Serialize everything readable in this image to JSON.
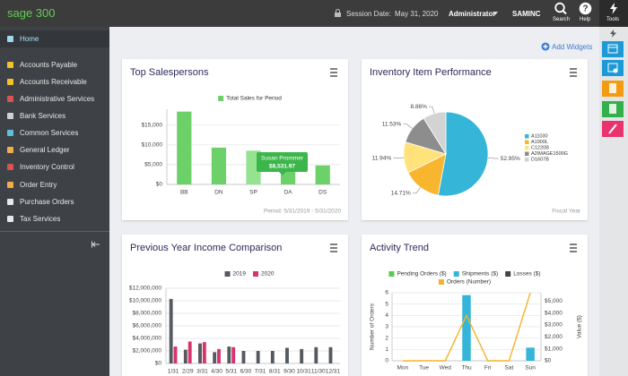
{
  "header": {
    "logo": "sage 300",
    "session_label": "Session Date:",
    "session_date": "May 31, 2020",
    "user": "Administrator",
    "company": "SAMINC",
    "search": "Search",
    "help_glyph": "?",
    "help": "Help",
    "tools": "Tools"
  },
  "sidebar": {
    "items": [
      "Home",
      "Accounts Payable",
      "Accounts Receivable",
      "Administrative Services",
      "Bank Services",
      "Common Services",
      "General Ledger",
      "Inventory Control",
      "Order Entry",
      "Purchase Orders",
      "Tax Services"
    ]
  },
  "add_widgets": "Add Widgets",
  "chart_data": [
    {
      "type": "bar",
      "title": "Top Salespersons",
      "categories": [
        "BB",
        "DN",
        "SP",
        "DA",
        "DS"
      ],
      "series": [
        {
          "name": "Total Sales for Period",
          "color": "#6cd168",
          "values": [
            18400,
            9300,
            8531.97,
            5600,
            4800
          ]
        }
      ],
      "colors": [
        "#6cd168",
        "#6cd168",
        "#95e391",
        "#6cd168",
        "#6cd168"
      ],
      "ylim": [
        0,
        19000
      ],
      "yticks": [
        {
          "value": 0,
          "label": "$0"
        },
        {
          "value": 5000,
          "label": "$5,000"
        },
        {
          "value": 10000,
          "label": "$10,000"
        },
        {
          "value": 15000,
          "label": "$15,000"
        }
      ],
      "grid": true,
      "legend": "top",
      "tooltip": {
        "title": "Susan Prommer",
        "label": "$8,531.97"
      },
      "footer": "Period: 5/31/2019 - 5/31/2020"
    },
    {
      "type": "pie",
      "title": "Inventory Item Performance",
      "categories": [
        "A11030",
        "A1900L",
        "C1220B",
        "A2IMAGE1500G",
        "D1607B"
      ],
      "values": [
        52.95,
        14.71,
        11.94,
        11.53,
        8.86
      ],
      "value_labels": [
        "52.95%",
        "14.71%",
        "11.94%",
        "11.53%",
        "8.86%"
      ],
      "colors": [
        "#35b5d8",
        "#f8b52e",
        "#ffe27a",
        "#8d8d8d",
        "#d3d3d3"
      ],
      "legend": "right",
      "footer": "Fiscal Year"
    },
    {
      "type": "bar",
      "title": "Previous Year Income Comparison",
      "categories": [
        "1/31",
        "2/29",
        "3/31",
        "4/30",
        "5/31",
        "6/30",
        "7/31",
        "8/31",
        "9/30",
        "10/31",
        "11/30",
        "12/31"
      ],
      "series": [
        {
          "name": "2019",
          "color": "#555a60",
          "values": [
            10300000,
            2200000,
            3200000,
            1800000,
            2700000,
            2000000,
            2000000,
            2000000,
            2500000,
            2300000,
            2600000,
            2600000
          ]
        },
        {
          "name": "2020",
          "color": "#d8336d",
          "values": [
            2700000,
            3500000,
            3400000,
            2300000,
            2600000,
            null,
            null,
            null,
            null,
            null,
            null,
            null
          ]
        }
      ],
      "ylim": [
        0,
        12000000
      ],
      "yticks": [
        {
          "value": 0,
          "label": "$0"
        },
        {
          "value": 2000000,
          "label": "$2,000,000"
        },
        {
          "value": 4000000,
          "label": "$4,000,000"
        },
        {
          "value": 6000000,
          "label": "$6,000,000"
        },
        {
          "value": 8000000,
          "label": "$8,000,000"
        },
        {
          "value": 10000000,
          "label": "$10,000,000"
        },
        {
          "value": 12000000,
          "label": "$12,000,000"
        }
      ],
      "grid": true,
      "legend": "top"
    },
    {
      "type": "combo",
      "title": "Activity Trend",
      "categories": [
        "Mon",
        "Tue",
        "Wed",
        "Thu",
        "Fri",
        "Sat",
        "Sun"
      ],
      "series": [
        {
          "name": "Pending Orders ($)",
          "color": "#5cc85a",
          "kind": "bar",
          "axis": "y2",
          "values": [
            0,
            0,
            0,
            0,
            0,
            0,
            0
          ]
        },
        {
          "name": "Shipments ($)",
          "color": "#35b5d8",
          "kind": "bar",
          "axis": "y2",
          "values": [
            0,
            0,
            0,
            5500,
            0,
            0,
            1100
          ]
        },
        {
          "name": "Losses ($)",
          "color": "#444444",
          "kind": "bar",
          "axis": "y2",
          "values": [
            0,
            0,
            0,
            0,
            0,
            0,
            0
          ]
        },
        {
          "name": "Orders (Number)",
          "color": "#f5b32a",
          "kind": "line",
          "values": [
            0,
            0,
            0,
            4,
            0,
            0,
            6
          ]
        }
      ],
      "ylabel": "Number of Orders",
      "y2label": "Value ($)",
      "ylim": [
        0,
        6
      ],
      "yticks": [
        0,
        1,
        2,
        3,
        4,
        5,
        6
      ],
      "y2lim": [
        0,
        5700
      ],
      "y2ticks": [
        {
          "value": 0,
          "label": "$0"
        },
        {
          "value": 1000,
          "label": "$1,000"
        },
        {
          "value": 2000,
          "label": "$2,000"
        },
        {
          "value": 3000,
          "label": "$3,000"
        },
        {
          "value": 4000,
          "label": "$4,000"
        },
        {
          "value": 5000,
          "label": "$5,000"
        }
      ],
      "grid": true,
      "legend": "top"
    }
  ]
}
